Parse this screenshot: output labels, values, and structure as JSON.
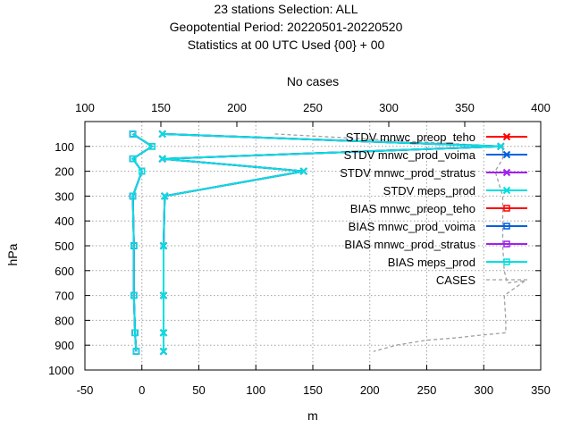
{
  "chart_data": {
    "type": "line",
    "title_lines": [
      "23 stations Selection: ALL",
      "Geopotential  Period: 20220501-20220520",
      "Statistics at 00 UTC  Used {00} + 00"
    ],
    "xlabel": "m",
    "ylabel": "hPa",
    "x2label": "No cases",
    "xlim": [
      -50,
      350
    ],
    "x2lim": [
      100,
      400
    ],
    "ylim": [
      1000,
      0
    ],
    "xticks": [
      "-50",
      "0",
      "50",
      "100",
      "150",
      "200",
      "250",
      "300",
      "350"
    ],
    "x2ticks": [
      "100",
      "150",
      "200",
      "250",
      "300",
      "350",
      "400"
    ],
    "yticks": [
      "100",
      "200",
      "300",
      "400",
      "500",
      "600",
      "700",
      "800",
      "900",
      "1000"
    ],
    "grid": true,
    "legend_position": "top-right",
    "levels": [
      50,
      100,
      150,
      200,
      300,
      500,
      700,
      850,
      925
    ],
    "series": [
      {
        "name": "STDV mnwc_preop_teho",
        "color": "#ff0000",
        "marker": "x",
        "values": [
          18,
          315,
          18,
          142,
          20,
          19,
          19,
          19,
          19
        ]
      },
      {
        "name": "STDV mnwc_prod_voima",
        "color": "#0060e0",
        "marker": "x",
        "values": [
          18,
          315,
          18,
          142,
          20,
          19,
          19,
          19,
          19
        ]
      },
      {
        "name": "STDV mnwc_prod_stratus",
        "color": "#a020f0",
        "marker": "x",
        "values": [
          18,
          315,
          18,
          142,
          20,
          19,
          19,
          19,
          19
        ]
      },
      {
        "name": "STDV meps_prod",
        "color": "#00e0e0",
        "marker": "x",
        "values": [
          18,
          315,
          18,
          142,
          20,
          19,
          19,
          19,
          19
        ]
      },
      {
        "name": "BIAS mnwc_preop_teho",
        "color": "#ff0000",
        "marker": "square",
        "values": [
          -8,
          9,
          -8,
          0,
          -8,
          -7,
          -7,
          -6,
          -5
        ]
      },
      {
        "name": "BIAS mnwc_prod_voima",
        "color": "#0060e0",
        "marker": "square",
        "values": [
          -8,
          9,
          -8,
          0,
          -8,
          -7,
          -7,
          -6,
          -5
        ]
      },
      {
        "name": "BIAS mnwc_prod_stratus",
        "color": "#a020f0",
        "marker": "square",
        "values": [
          -8,
          9,
          -8,
          0,
          -8,
          -7,
          -7,
          -6,
          -5
        ]
      },
      {
        "name": "BIAS meps_prod",
        "color": "#00e0e0",
        "marker": "square",
        "values": [
          -8,
          9,
          -8,
          0,
          -8,
          -7,
          -7,
          -6,
          -5
        ]
      }
    ],
    "cases": {
      "name": "CASES",
      "color": "#a0a0a0",
      "axis": "top",
      "points": [
        [
          225,
          50
        ],
        [
          375,
          100
        ],
        [
          375,
          150
        ],
        [
          370,
          200
        ],
        [
          375,
          300
        ],
        [
          375,
          500
        ],
        [
          376,
          600
        ],
        [
          378,
          650
        ],
        [
          390,
          640
        ],
        [
          376,
          700
        ],
        [
          377,
          800
        ],
        [
          377,
          850
        ],
        [
          360,
          860
        ],
        [
          345,
          870
        ],
        [
          325,
          880
        ],
        [
          305,
          900
        ],
        [
          290,
          925
        ]
      ]
    }
  }
}
